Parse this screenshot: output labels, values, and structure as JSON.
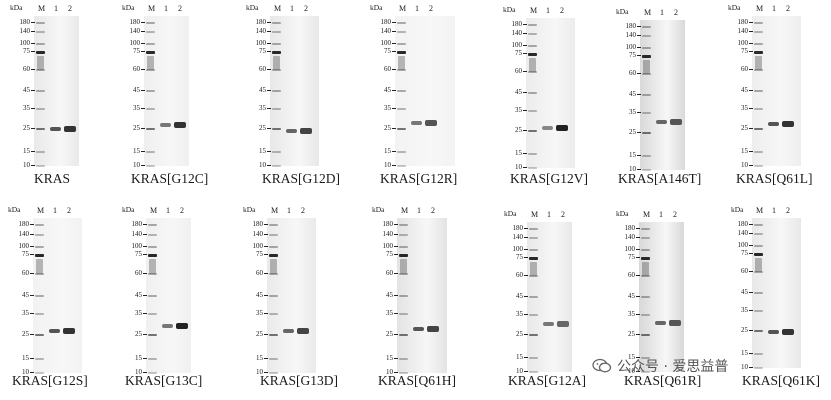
{
  "header": {
    "kda": "kDa",
    "lanes": [
      "M",
      "1",
      "2"
    ]
  },
  "mw_labels": [
    "180",
    "140",
    "100",
    "75",
    "60",
    "45",
    "35",
    "25",
    "15",
    "10"
  ],
  "panels": [
    {
      "name": "KRAS"
    },
    {
      "name": "KRAS[G12C]"
    },
    {
      "name": "KRAS[G12D]"
    },
    {
      "name": "KRAS[G12R]"
    },
    {
      "name": "KRAS[G12V]"
    },
    {
      "name": "KRAS[A146T]"
    },
    {
      "name": "KRAS[Q61L]"
    },
    {
      "name": "KRAS[G12S]"
    },
    {
      "name": "KRAS[G13C]"
    },
    {
      "name": "KRAS[G13D]"
    },
    {
      "name": "KRAS[Q61H]"
    },
    {
      "name": "KRAS[G12A]"
    },
    {
      "name": "KRAS[Q61R]"
    },
    {
      "name": "KRAS[Q61K]"
    }
  ],
  "watermark": {
    "text": "公众号 · 爱思益普",
    "icon": "wechat-icon"
  }
}
